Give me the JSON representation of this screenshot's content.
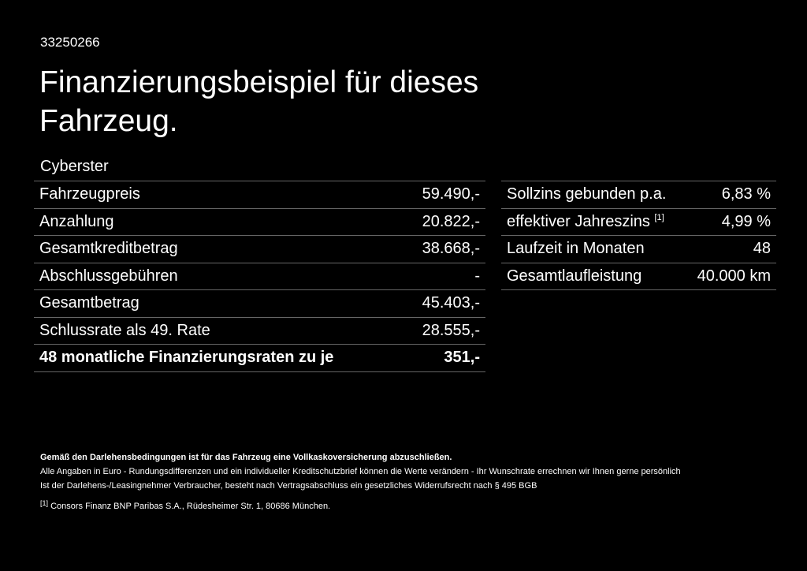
{
  "id": "33250266",
  "title": "Finanzierungsbeispiel für dieses Fahrzeug.",
  "model": "Cyberster",
  "left_rows": [
    {
      "label": "Fahrzeugpreis",
      "value": "59.490,-"
    },
    {
      "label": "Anzahlung",
      "value": "20.822,-"
    },
    {
      "label": "Gesamtkreditbetrag",
      "value": "38.668,-"
    },
    {
      "label": "Abschlussgebühren",
      "value": "-"
    },
    {
      "label": "Gesamtbetrag",
      "value": "45.403,-"
    },
    {
      "label": "Schlussrate als 49. Rate",
      "value": "28.555,-"
    },
    {
      "label": "48 monatliche Finanzierungsraten zu je",
      "value": "351,-"
    }
  ],
  "right_rows": [
    {
      "label": "Sollzins gebunden p.a.",
      "value": "6,83 %"
    },
    {
      "label": "effektiver Jahreszins",
      "sup": "[1]",
      "value": "4,99 %"
    },
    {
      "label": "Laufzeit in Monaten",
      "value": "48"
    },
    {
      "label": "Gesamtlaufleistung",
      "value": "40.000 km"
    }
  ],
  "notes": {
    "bold": "Gemäß den Darlehensbedingungen ist für das Fahrzeug eine Vollkaskoversicherung abzuschließen.",
    "line1": "Alle Angaben in Euro - Rundungsdifferenzen und ein individueller Kreditschutzbrief können die Werte verändern - Ihr Wunschrate errechnen wir Ihnen gerne persönlich",
    "line2": "Ist der Darlehens-/Leasingnehmer Verbraucher, besteht nach Vertragsabschluss ein gesetzliches Widerrufsrecht nach § 495 BGB",
    "footnote_mark": "[1]",
    "footnote": "Consors Finanz BNP Paribas S.A., Rüdesheimer Str. 1, 80686 München."
  }
}
